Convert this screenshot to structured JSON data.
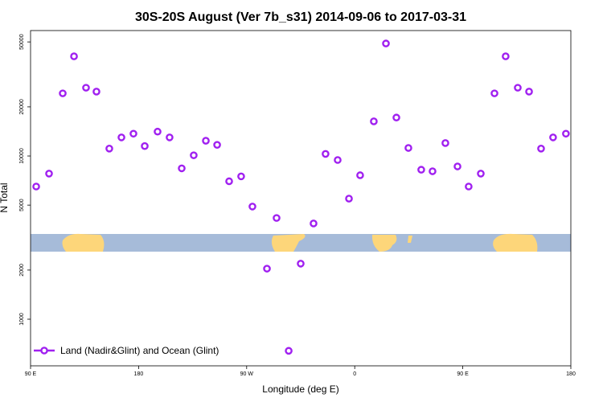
{
  "chart_data": {
    "type": "scatter",
    "title": "30S-20S August (Ver 7b_s31)   2014-09-06 to 2017-03-31",
    "x_label": "Longitude (deg E)",
    "y_label": "N Total",
    "log_y": true,
    "xlim": [
      90,
      540
    ],
    "ylim": [
      518,
      58700
    ],
    "xticks": [
      {
        "value": 90,
        "label": "90 E"
      },
      180,
      {
        "value": 270,
        "label": "90 W"
      },
      {
        "value": 360,
        "label": "0"
      },
      {
        "value": 450,
        "label": "90 E"
      },
      {
        "value": 540,
        "label": "180"
      }
    ],
    "yticks": [
      1000,
      2000,
      5000,
      10000,
      20000,
      50000
    ],
    "legend": "bottom-left",
    "series": [
      {
        "name": "Land (Nadir&Glint) and Ocean (Glint)",
        "color": "#a020f0",
        "x": [
          94.7,
          105.4,
          116.8,
          126.2,
          136.2,
          144.9,
          155.6,
          165.7,
          175.7,
          185.1,
          195.8,
          205.8,
          215.9,
          225.9,
          236,
          245.4,
          255.4,
          265.4,
          274.8,
          286.9,
          294.9,
          305,
          315,
          325.7,
          335.7,
          345.8,
          355.2,
          364.5,
          375.9,
          386,
          394.7,
          404.7,
          415.4,
          424.8,
          435.5,
          445.6,
          454.9,
          465,
          476.4,
          485.7,
          495.8,
          505.2,
          515.2,
          525.2,
          535.9
        ],
        "values": [
          6500,
          7800,
          24200,
          40800,
          26200,
          24800,
          11100,
          13000,
          13700,
          11500,
          14100,
          13000,
          8400,
          10100,
          12400,
          11700,
          7000,
          7500,
          4900,
          2040,
          4170,
          640,
          2190,
          3860,
          10300,
          9450,
          5480,
          7620,
          16300,
          48900,
          17200,
          11200,
          8240,
          8060,
          12000,
          8630,
          6500,
          7800,
          24200,
          40800,
          26200,
          24800,
          11100,
          13000,
          13700
        ]
      }
    ]
  }
}
